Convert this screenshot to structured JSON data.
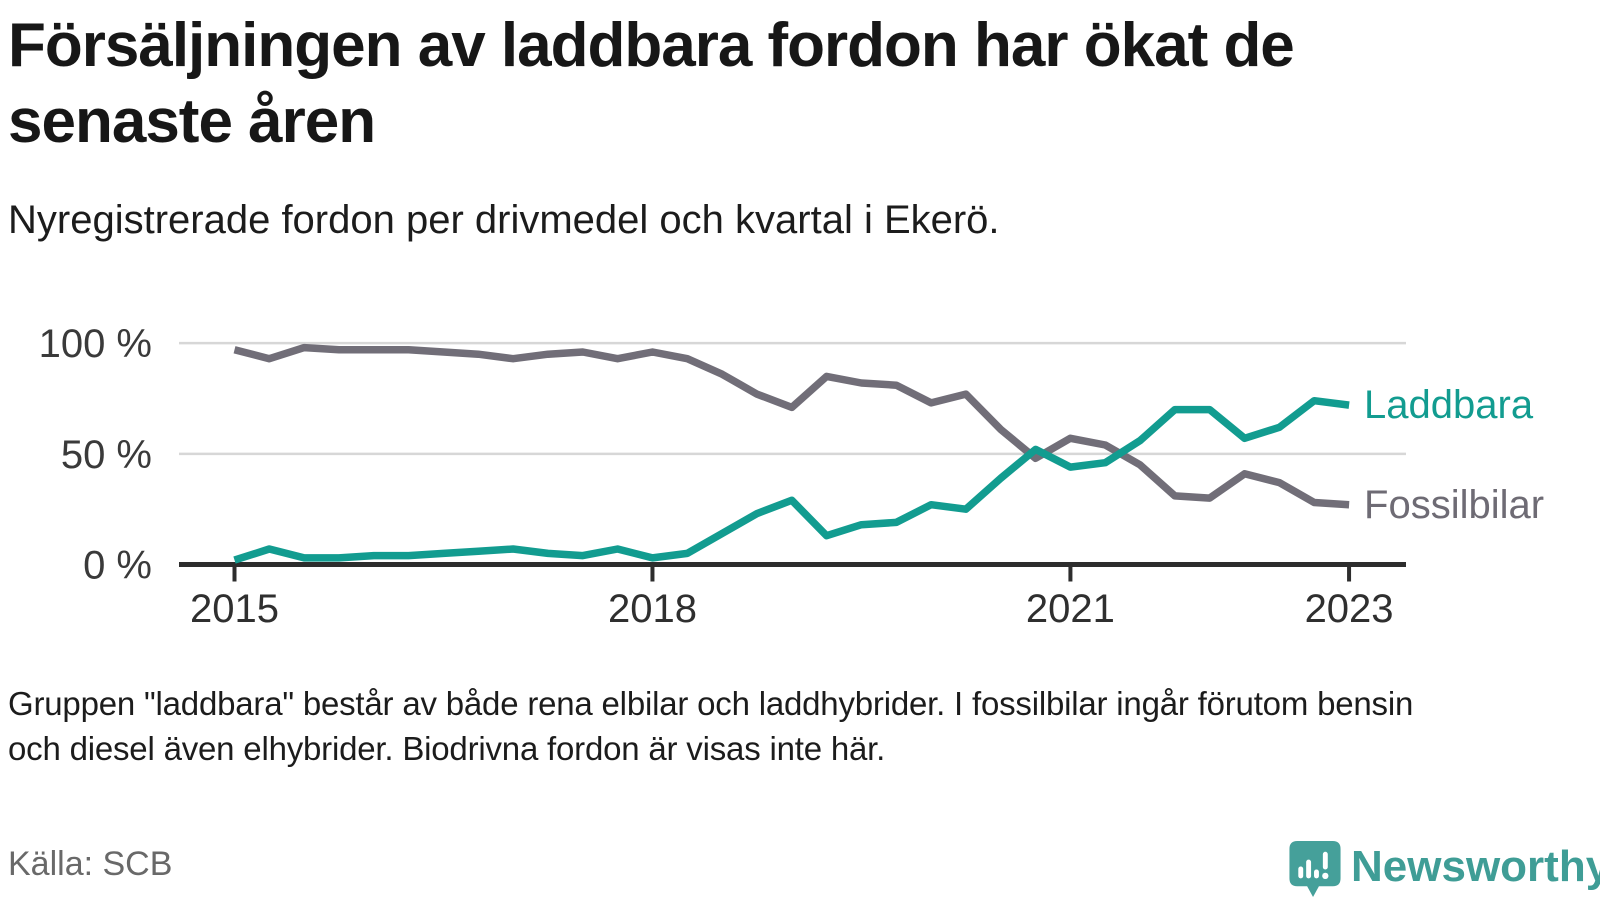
{
  "header": {
    "title": "Försäljningen av laddbara fordon har ökat de\nsenaste åren",
    "subtitle": "Nyregistrerade fordon per drivmedel och kvartal i Ekerö."
  },
  "chart_data": {
    "type": "line",
    "unit": "%",
    "x": [
      "2015Q1",
      "2015Q2",
      "2015Q3",
      "2015Q4",
      "2016Q1",
      "2016Q2",
      "2016Q3",
      "2016Q4",
      "2017Q1",
      "2017Q2",
      "2017Q3",
      "2017Q4",
      "2018Q1",
      "2018Q2",
      "2018Q3",
      "2018Q4",
      "2019Q1",
      "2019Q2",
      "2019Q3",
      "2019Q4",
      "2020Q1",
      "2020Q2",
      "2020Q3",
      "2020Q4",
      "2021Q1",
      "2021Q2",
      "2021Q3",
      "2021Q4",
      "2022Q1",
      "2022Q2",
      "2022Q3",
      "2022Q4",
      "2023Q1"
    ],
    "series": [
      {
        "name": "Fossilbilar",
        "color": "#716e78",
        "values": [
          97,
          93,
          98,
          97,
          97,
          97,
          96,
          95,
          93,
          95,
          96,
          93,
          96,
          93,
          86,
          77,
          71,
          85,
          82,
          81,
          73,
          77,
          61,
          48,
          57,
          54,
          45,
          31,
          30,
          41,
          37,
          28,
          27
        ]
      },
      {
        "name": "Laddbara",
        "color": "#129c90",
        "values": [
          2,
          7,
          3,
          3,
          4,
          4,
          5,
          6,
          7,
          5,
          4,
          7,
          3,
          5,
          14,
          23,
          29,
          13,
          18,
          19,
          27,
          25,
          39,
          52,
          44,
          46,
          56,
          70,
          70,
          57,
          62,
          74,
          72
        ]
      }
    ],
    "ylim": [
      0,
      100
    ],
    "y_ticks": [
      {
        "value": 100,
        "label": "100 %"
      },
      {
        "value": 50,
        "label": "50 %"
      },
      {
        "value": 0,
        "label": "0 %"
      }
    ],
    "x_ticks": [
      {
        "label": "2015",
        "index": 0
      },
      {
        "label": "2018",
        "index": 12
      },
      {
        "label": "2021",
        "index": 24
      },
      {
        "label": "2023",
        "index": 32
      }
    ],
    "grid": "horizontal",
    "legend_position": "right-of-line-ends"
  },
  "legend": {
    "laddbara": "Laddbara",
    "fossilbilar": "Fossilbilar"
  },
  "footnote": "Gruppen \"laddbara\" består av både rena elbilar och laddhybrider. I fossilbilar ingår förutom bensin\noch diesel även elhybrider. Biodrivna fordon är visas inte här.",
  "source": "Källa: SCB",
  "logo": {
    "text": "Newsworthy",
    "icon": "newsworthy-pin-icon"
  },
  "colors": {
    "laddbara": "#129c90",
    "fossilbilar": "#716e78",
    "grid": "#d7d7d7",
    "axis": "#2d2d2d",
    "logo_teal": "#45a09a",
    "wordmark_teal": "#3f9d96"
  }
}
